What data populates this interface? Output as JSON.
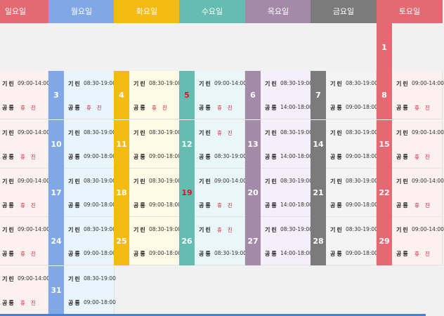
{
  "weekdays": [
    {
      "label": "일요일",
      "color": "#e36a72",
      "num_bg": "#e36a72",
      "card_bg": "#fdf0f1"
    },
    {
      "label": "월요일",
      "color": "#80a8e6",
      "num_bg": "#80a8e6",
      "card_bg": "#e8f5fd"
    },
    {
      "label": "화요일",
      "color": "#f6bb12",
      "num_bg": "#f6bb12",
      "card_bg": "#fffbe6"
    },
    {
      "label": "수요일",
      "color": "#65bcb0",
      "num_bg": "#65bcb0",
      "card_bg": "#eaf7f8"
    },
    {
      "label": "목요일",
      "color": "#a38aa8",
      "num_bg": "#a38aa8",
      "card_bg": "#f4effa"
    },
    {
      "label": "금요일",
      "color": "#7b7b7b",
      "num_bg": "#7b7b7b",
      "card_bg": "#f4f4f4"
    },
    {
      "label": "토요일",
      "color": "#e36a72",
      "num_bg": "#e36a72",
      "card_bg": "#fdf0f1"
    }
  ],
  "labels": {
    "row1": "기린",
    "row2": "공룡",
    "closed": "휴진"
  },
  "days": [
    {
      "date": "1",
      "dow": 6,
      "week": 0,
      "row1": "",
      "row2": "",
      "red": false,
      "empty": true
    },
    {
      "date": "",
      "dow": 0,
      "week": 1,
      "row1": "09:00-14:00",
      "row2": "휴진",
      "red": false
    },
    {
      "date": "3",
      "dow": 1,
      "week": 1,
      "row1": "08:30-19:00",
      "row2": "휴진",
      "red": false
    },
    {
      "date": "4",
      "dow": 2,
      "week": 1,
      "row1": "08:30-19:00",
      "row2": "휴진",
      "red": false
    },
    {
      "date": "5",
      "dow": 3,
      "week": 1,
      "row1": "09:00-14:00",
      "row2": "휴진",
      "red": true
    },
    {
      "date": "6",
      "dow": 4,
      "week": 1,
      "row1": "08:30-19:00",
      "row2": "14:00-18:00",
      "red": false
    },
    {
      "date": "7",
      "dow": 5,
      "week": 1,
      "row1": "08:30-19:00",
      "row2": "09:00-18:00",
      "red": false
    },
    {
      "date": "8",
      "dow": 6,
      "week": 1,
      "row1": "09:00-14:00",
      "row2": "휴진",
      "red": false
    },
    {
      "date": "",
      "dow": 0,
      "week": 2,
      "row1": "09:00-14:00",
      "row2": "휴진",
      "red": false
    },
    {
      "date": "10",
      "dow": 1,
      "week": 2,
      "row1": "08:30-19:00",
      "row2": "09:00-18:00",
      "red": false
    },
    {
      "date": "11",
      "dow": 2,
      "week": 2,
      "row1": "08:30-19:00",
      "row2": "09:00-18:00",
      "red": false
    },
    {
      "date": "12",
      "dow": 3,
      "week": 2,
      "row1": "휴진",
      "row2": "08:30-19:00",
      "red": false
    },
    {
      "date": "13",
      "dow": 4,
      "week": 2,
      "row1": "08:30-19:00",
      "row2": "14:00-18:00",
      "red": false
    },
    {
      "date": "14",
      "dow": 5,
      "week": 2,
      "row1": "08:30-19:00",
      "row2": "09:00-18:00",
      "red": false
    },
    {
      "date": "15",
      "dow": 6,
      "week": 2,
      "row1": "09:00-14:00",
      "row2": "휴진",
      "red": false
    },
    {
      "date": "",
      "dow": 0,
      "week": 3,
      "row1": "09:00-14:00",
      "row2": "휴진",
      "red": false
    },
    {
      "date": "17",
      "dow": 1,
      "week": 3,
      "row1": "08:30-19:00",
      "row2": "09:00-18:00",
      "red": false
    },
    {
      "date": "18",
      "dow": 2,
      "week": 3,
      "row1": "08:30-19:00",
      "row2": "09:00-18:00",
      "red": false
    },
    {
      "date": "19",
      "dow": 3,
      "week": 3,
      "row1": "09:00-14:00",
      "row2": "휴진",
      "red": true
    },
    {
      "date": "20",
      "dow": 4,
      "week": 3,
      "row1": "08:30-19:00",
      "row2": "14:00-18:00",
      "red": false
    },
    {
      "date": "21",
      "dow": 5,
      "week": 3,
      "row1": "08:30-19:00",
      "row2": "09:00-18:00",
      "red": false
    },
    {
      "date": "22",
      "dow": 6,
      "week": 3,
      "row1": "09:00-14:00",
      "row2": "휴진",
      "red": false
    },
    {
      "date": "",
      "dow": 0,
      "week": 4,
      "row1": "09:00-14:00",
      "row2": "휴진",
      "red": false
    },
    {
      "date": "24",
      "dow": 1,
      "week": 4,
      "row1": "08:30-19:00",
      "row2": "09:00-18:00",
      "red": false
    },
    {
      "date": "25",
      "dow": 2,
      "week": 4,
      "row1": "08:30-19:00",
      "row2": "09:00-18:00",
      "red": false
    },
    {
      "date": "26",
      "dow": 3,
      "week": 4,
      "row1": "휴진",
      "row2": "08:30-19:00",
      "red": false
    },
    {
      "date": "27",
      "dow": 4,
      "week": 4,
      "row1": "08:30-19:00",
      "row2": "14:00-18:00",
      "red": false
    },
    {
      "date": "28",
      "dow": 5,
      "week": 4,
      "row1": "08:30-19:00",
      "row2": "09:00-18:00",
      "red": false
    },
    {
      "date": "29",
      "dow": 6,
      "week": 4,
      "row1": "09:00-14:00",
      "row2": "휴진",
      "red": false
    },
    {
      "date": "",
      "dow": 0,
      "week": 5,
      "row1": "09:00-14:00",
      "row2": "휴진",
      "red": false
    },
    {
      "date": "31",
      "dow": 1,
      "week": 5,
      "row1": "08:30-19:00",
      "row2": "09:00-18:00",
      "red": false
    }
  ]
}
